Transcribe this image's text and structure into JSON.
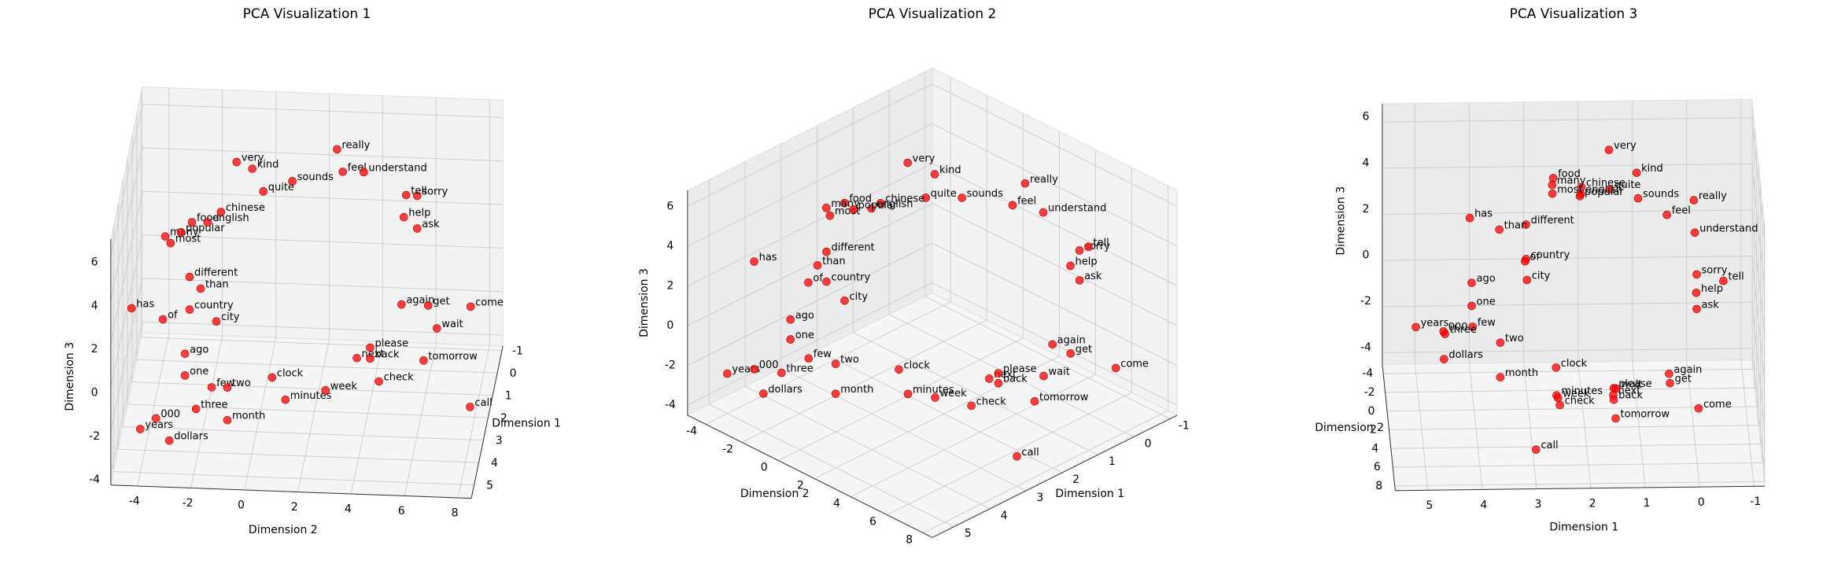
{
  "chart_data": [
    {
      "type": "scatter3d",
      "title": "PCA Visualization 1",
      "xlabel": "Dimension 1",
      "ylabel": "Dimension 2",
      "zlabel": "Dimension 3",
      "xlim": [
        -1.2,
        5.6
      ],
      "ylim": [
        -5,
        8.5
      ],
      "zlim": [
        -4.5,
        6.8
      ],
      "xticks": [
        -1,
        0,
        1,
        2,
        3,
        4,
        5
      ],
      "yticks": [
        -4,
        -2,
        0,
        2,
        4,
        6,
        8
      ],
      "zticks": [
        -4,
        -2,
        0,
        2,
        4,
        6
      ],
      "color": "#ff0000",
      "grid": true,
      "points": {
        "labels": [
          "very",
          "really",
          "kind",
          "feel",
          "sounds",
          "understand",
          "sorry",
          "quite",
          "food",
          "chinese",
          "english",
          "many",
          "most",
          "popular",
          "different",
          "than",
          "has",
          "country",
          "city",
          "of",
          "ago",
          "one",
          "few",
          "years",
          "three",
          "two",
          "000",
          "dollars",
          "month",
          "minutes",
          "week",
          "clock",
          "next",
          "back",
          "check",
          "call",
          "tomorrow",
          "please",
          "again",
          "wait",
          "come",
          "get",
          "help",
          "ask",
          "tell"
        ],
        "x": [
          1.5,
          0,
          1,
          0.5,
          1,
          0,
          0,
          1.5,
          2.5,
          2,
          2,
          2.5,
          2.5,
          2,
          3,
          3.5,
          4,
          3,
          3,
          3,
          4,
          4,
          4,
          5,
          4.5,
          3.5,
          4.5,
          4.5,
          3.5,
          2.5,
          2.5,
          2.5,
          1.5,
          1.5,
          2.5,
          3,
          1.5,
          1.5,
          0.5,
          1.5,
          0,
          0.5,
          0,
          0,
          -0.5
        ],
        "y": [
          -1,
          2.5,
          -0.5,
          2.8,
          1,
          3.5,
          5.5,
          0,
          -2.5,
          -1.5,
          -2,
          -3.5,
          -3.3,
          -3,
          -2.5,
          -2,
          -4.5,
          -2.5,
          -1.5,
          -3.5,
          -2.5,
          -2.5,
          -1.5,
          -4,
          -2,
          -1,
          -3.5,
          -3,
          -1,
          1,
          2.5,
          0.5,
          3.5,
          4,
          4.5,
          8,
          6,
          4,
          5,
          6.5,
          7.5,
          6,
          5,
          5.5,
          5
        ],
        "z": [
          6.3,
          5.5,
          5.5,
          5,
          5,
          4.5,
          3.5,
          5,
          4.5,
          4.5,
          4,
          3.8,
          3.5,
          3.5,
          2.5,
          2.5,
          2,
          1,
          0.5,
          0.5,
          0,
          -1,
          -1.5,
          -2.5,
          -2,
          -2,
          -2.5,
          -3.5,
          -3.5,
          -3.5,
          -3,
          -2.5,
          -2.5,
          -2.5,
          -2.5,
          -3,
          -2.5,
          -2,
          -1,
          -1,
          -1.5,
          -1,
          2.5,
          2,
          3
        ]
      }
    },
    {
      "type": "scatter3d",
      "title": "PCA Visualization 2",
      "xlabel": "Dimension 1",
      "ylabel": "Dimension 2",
      "zlabel": "Dimension 3",
      "xlim": [
        -1.2,
        5.6
      ],
      "ylim": [
        -5,
        8.5
      ],
      "zlim": [
        -4.5,
        6.8
      ],
      "xticks": [
        -1,
        0,
        1,
        2,
        3,
        4,
        5
      ],
      "yticks": [
        -4,
        -2,
        0,
        2,
        4,
        6,
        8
      ],
      "zticks": [
        -4,
        -2,
        0,
        2,
        4,
        6
      ],
      "color": "#ff0000",
      "grid": true,
      "points": {
        "labels": [
          "very",
          "really",
          "kind",
          "feel",
          "sounds",
          "understand",
          "sorry",
          "quite",
          "food",
          "chinese",
          "english",
          "many",
          "most",
          "popular",
          "different",
          "than",
          "has",
          "country",
          "city",
          "of",
          "ago",
          "one",
          "few",
          "years",
          "three",
          "two",
          "000",
          "dollars",
          "month",
          "minutes",
          "week",
          "clock",
          "next",
          "back",
          "check",
          "call",
          "tomorrow",
          "please",
          "again",
          "wait",
          "come",
          "get",
          "help",
          "ask",
          "tell"
        ],
        "x": [
          1.5,
          0,
          1,
          0.5,
          1,
          0,
          0,
          1.5,
          2.5,
          2,
          2,
          2.5,
          2.5,
          2,
          3,
          3.5,
          4,
          3,
          3,
          3,
          4,
          4,
          4,
          5,
          4.5,
          3.5,
          4.5,
          4.5,
          3.5,
          2.5,
          2.5,
          2.5,
          1.5,
          1.5,
          2.5,
          3,
          1.5,
          1.5,
          0.5,
          1.5,
          0,
          0.5,
          0,
          0,
          -0.5
        ],
        "y": [
          -1,
          2.5,
          -0.5,
          2.8,
          1,
          3.5,
          5.5,
          0,
          -2.5,
          -1.5,
          -2,
          -3.5,
          -3.3,
          -3,
          -2.5,
          -2,
          -4.5,
          -2.5,
          -1.5,
          -3.5,
          -2.5,
          -2.5,
          -1.5,
          -4,
          -2,
          -1,
          -3.5,
          -3,
          -1,
          1,
          2.5,
          0.5,
          3.5,
          4,
          4.5,
          8,
          6,
          4,
          5,
          6.5,
          7.5,
          6,
          5,
          5.5,
          5
        ],
        "z": [
          6.3,
          5.5,
          5.5,
          5,
          5,
          4.5,
          3.5,
          5,
          4.5,
          4.5,
          4,
          3.8,
          3.5,
          3.5,
          2.5,
          2.5,
          2,
          1,
          0.5,
          0.5,
          0,
          -1,
          -1.5,
          -2.5,
          -2,
          -2,
          -2.5,
          -3.5,
          -3.5,
          -3.5,
          -3,
          -2.5,
          -2.5,
          -2.5,
          -2.5,
          -3,
          -2.5,
          -2,
          -1,
          -1,
          -1.5,
          -1,
          2.5,
          2,
          3
        ]
      }
    },
    {
      "type": "scatter3d",
      "title": "PCA Visualization 3",
      "xlabel": "Dimension 1",
      "ylabel": "Dimension 2",
      "zlabel": "Dimension 3",
      "xlim": [
        -1.2,
        5.6
      ],
      "ylim": [
        -5,
        8.5
      ],
      "zlim": [
        -4.5,
        6.8
      ],
      "xticks": [
        -1,
        0,
        1,
        2,
        3,
        4,
        5
      ],
      "yticks": [
        -4,
        -2,
        0,
        2,
        4,
        6,
        8
      ],
      "zticks": [
        -4,
        -2,
        0,
        2,
        4,
        6
      ],
      "color": "#ff0000",
      "grid": true,
      "points": {
        "labels": [
          "very",
          "really",
          "kind",
          "feel",
          "sounds",
          "understand",
          "sorry",
          "quite",
          "food",
          "chinese",
          "english",
          "many",
          "most",
          "popular",
          "different",
          "than",
          "has",
          "country",
          "city",
          "of",
          "ago",
          "one",
          "few",
          "years",
          "three",
          "two",
          "000",
          "dollars",
          "month",
          "minutes",
          "week",
          "clock",
          "next",
          "back",
          "check",
          "call",
          "tomorrow",
          "please",
          "again",
          "wait",
          "come",
          "get",
          "help",
          "ask",
          "tell"
        ],
        "x": [
          1.5,
          0,
          1,
          0.5,
          1,
          0,
          0,
          1.5,
          2.5,
          2,
          2,
          2.5,
          2.5,
          2,
          3,
          3.5,
          4,
          3,
          3,
          3,
          4,
          4,
          4,
          5,
          4.5,
          3.5,
          4.5,
          4.5,
          3.5,
          2.5,
          2.5,
          2.5,
          1.5,
          1.5,
          2.5,
          3,
          1.5,
          1.5,
          0.5,
          1.5,
          0,
          0.5,
          0,
          0,
          -0.5
        ],
        "y": [
          -1,
          2.5,
          -0.5,
          2.8,
          1,
          3.5,
          5.5,
          0,
          -2.5,
          -1.5,
          -2,
          -3.5,
          -3.3,
          -3,
          -2.5,
          -2,
          -4.5,
          -2.5,
          -1.5,
          -3.5,
          -2.5,
          -2.5,
          -1.5,
          -4,
          -2,
          -1,
          -3.5,
          -3,
          -1,
          1,
          2.5,
          0.5,
          3.5,
          4,
          4.5,
          8,
          6,
          4,
          5,
          6.5,
          7.5,
          6,
          5,
          5.5,
          5
        ],
        "z": [
          6.3,
          5.5,
          5.5,
          5,
          5,
          4.5,
          3.5,
          5,
          4.5,
          4.5,
          4,
          3.8,
          3.5,
          3.5,
          2.5,
          2.5,
          2,
          1,
          0.5,
          0.5,
          0,
          -1,
          -1.5,
          -2.5,
          -2,
          -2,
          -2.5,
          -3.5,
          -3.5,
          -3.5,
          -3,
          -2.5,
          -2.5,
          -2.5,
          -2.5,
          -3,
          -2.5,
          -2,
          -1,
          -1,
          -1.5,
          -1,
          2.5,
          2,
          3
        ]
      }
    }
  ]
}
